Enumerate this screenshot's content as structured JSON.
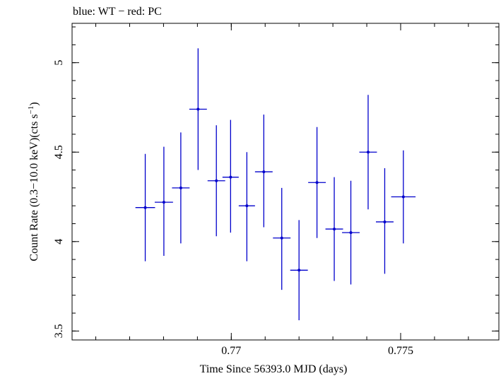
{
  "chart_data": {
    "type": "scatter",
    "title": "blue: WT − red: PC",
    "xlabel": "Time Since 56393.0 MJD (days)",
    "ylabel_main": "Count Rate (0.3−10.0 keV)(cts s",
    "ylabel_sup": "−1",
    "ylabel_close": ")",
    "xlim": [
      0.7653,
      0.7779
    ],
    "ylim": [
      3.45,
      5.22
    ],
    "x_ticks": [
      {
        "value": 0.77,
        "label": "0.77"
      },
      {
        "value": 0.775,
        "label": "0.775"
      }
    ],
    "x_minor_step": 0.001,
    "y_ticks": [
      {
        "value": 3.5,
        "label": "3.5"
      },
      {
        "value": 4.0,
        "label": "4"
      },
      {
        "value": 4.5,
        "label": "4.5"
      },
      {
        "value": 5.0,
        "label": "5"
      }
    ],
    "y_minor_step": 0.1,
    "grid": false,
    "series": [
      {
        "color": "#0000cc",
        "points": [
          {
            "x": 0.76746,
            "y": 4.19,
            "xerr": 0.00029,
            "ylo": 3.89,
            "yhi": 4.49
          },
          {
            "x": 0.76801,
            "y": 4.22,
            "xerr": 0.00027,
            "ylo": 3.92,
            "yhi": 4.53
          },
          {
            "x": 0.76851,
            "y": 4.3,
            "xerr": 0.00026,
            "ylo": 3.99,
            "yhi": 4.61
          },
          {
            "x": 0.76902,
            "y": 4.74,
            "xerr": 0.00026,
            "ylo": 4.4,
            "yhi": 5.08
          },
          {
            "x": 0.76956,
            "y": 4.34,
            "xerr": 0.00026,
            "ylo": 4.03,
            "yhi": 4.65
          },
          {
            "x": 0.76998,
            "y": 4.36,
            "xerr": 0.00024,
            "ylo": 4.05,
            "yhi": 4.68
          },
          {
            "x": 0.77046,
            "y": 4.2,
            "xerr": 0.00024,
            "ylo": 3.89,
            "yhi": 4.5
          },
          {
            "x": 0.77096,
            "y": 4.39,
            "xerr": 0.00026,
            "ylo": 4.08,
            "yhi": 4.71
          },
          {
            "x": 0.77149,
            "y": 4.02,
            "xerr": 0.00026,
            "ylo": 3.73,
            "yhi": 4.3
          },
          {
            "x": 0.772,
            "y": 3.84,
            "xerr": 0.00026,
            "ylo": 3.56,
            "yhi": 4.12
          },
          {
            "x": 0.77253,
            "y": 4.33,
            "xerr": 0.00026,
            "ylo": 4.02,
            "yhi": 4.64
          },
          {
            "x": 0.77304,
            "y": 4.07,
            "xerr": 0.00026,
            "ylo": 3.78,
            "yhi": 4.36
          },
          {
            "x": 0.77353,
            "y": 4.05,
            "xerr": 0.00026,
            "ylo": 3.76,
            "yhi": 4.34
          },
          {
            "x": 0.77404,
            "y": 4.5,
            "xerr": 0.00026,
            "ylo": 4.18,
            "yhi": 4.82
          },
          {
            "x": 0.77453,
            "y": 4.11,
            "xerr": 0.00026,
            "ylo": 3.82,
            "yhi": 4.41
          },
          {
            "x": 0.77508,
            "y": 4.25,
            "xerr": 0.00036,
            "ylo": 3.99,
            "yhi": 4.51
          }
        ]
      }
    ]
  }
}
